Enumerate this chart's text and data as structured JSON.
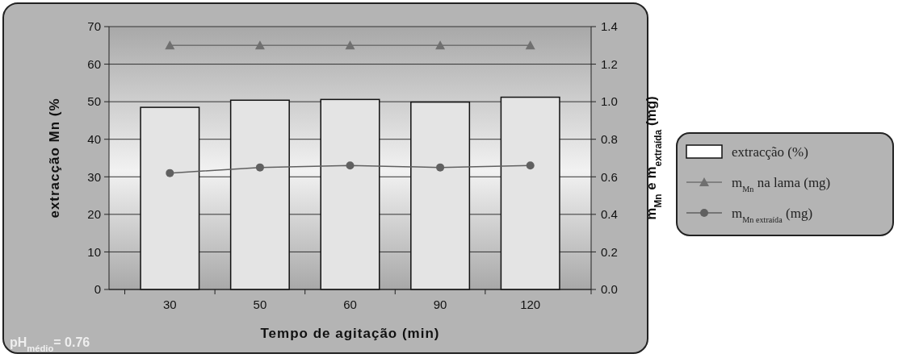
{
  "chart_data": {
    "type": "bar",
    "xlabel": "Tempo de agitação (min)",
    "ylabel": "extracção Mn (%",
    "y2label": "m$_{Mn}$ e m$_{extraída}$ (mg)",
    "categories": [
      "30",
      "50",
      "60",
      "90",
      "120"
    ],
    "series": [
      {
        "name": "extracção (%)",
        "color": "#e4e4e4",
        "values": [
          48.5,
          50.4,
          50.6,
          49.9,
          51.2
        ]
      },
      {
        "name": "m$_{Mn}$ na lama (mg)",
        "type": "line",
        "axis": "y2",
        "marker": "triangle",
        "color": "#707070",
        "values": [
          1.3,
          1.3,
          1.3,
          1.3,
          1.3
        ]
      },
      {
        "name": "m$_{Mn extraída}$ (mg)",
        "type": "line",
        "axis": "y2",
        "marker": "circle",
        "color": "#606060",
        "values": [
          0.62,
          0.65,
          0.66,
          0.65,
          0.66
        ]
      }
    ],
    "ylim": [
      0,
      70
    ],
    "yticks": [
      0,
      10,
      20,
      30,
      40,
      50,
      60,
      70
    ],
    "y2lim": [
      0,
      1.4
    ],
    "y2ticks": [
      {
        "value": 0,
        "label": "0.0"
      },
      0.2,
      0.4,
      0.6,
      0.8,
      {
        "value": 1,
        "label": "1.0"
      },
      1.2,
      1.4
    ],
    "grid": "y",
    "legend": "right",
    "annotations": [
      "pH$_{médio}$= 0.76"
    ]
  }
}
